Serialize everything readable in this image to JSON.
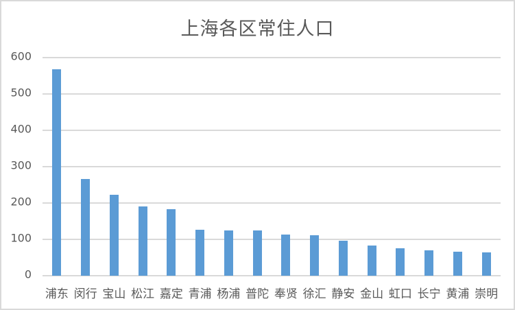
{
  "chart_data": {
    "type": "bar",
    "title": "上海各区常住人口",
    "xlabel": "",
    "ylabel": "",
    "ylim": [
      0,
      600
    ],
    "yticks": [
      0,
      100,
      200,
      300,
      400,
      500,
      600
    ],
    "grid": true,
    "legend": null,
    "bar_color": "#5b9bd5",
    "categories": [
      "浦东",
      "闵行",
      "宝山",
      "松江",
      "嘉定",
      "青浦",
      "杨浦",
      "普陀",
      "奉贤",
      "徐汇",
      "静安",
      "金山",
      "虹口",
      "长宁",
      "黄浦",
      "崇明"
    ],
    "values": [
      568,
      266,
      223,
      190,
      183,
      127,
      125,
      125,
      113,
      111,
      96,
      83,
      75,
      69,
      66,
      64
    ]
  }
}
